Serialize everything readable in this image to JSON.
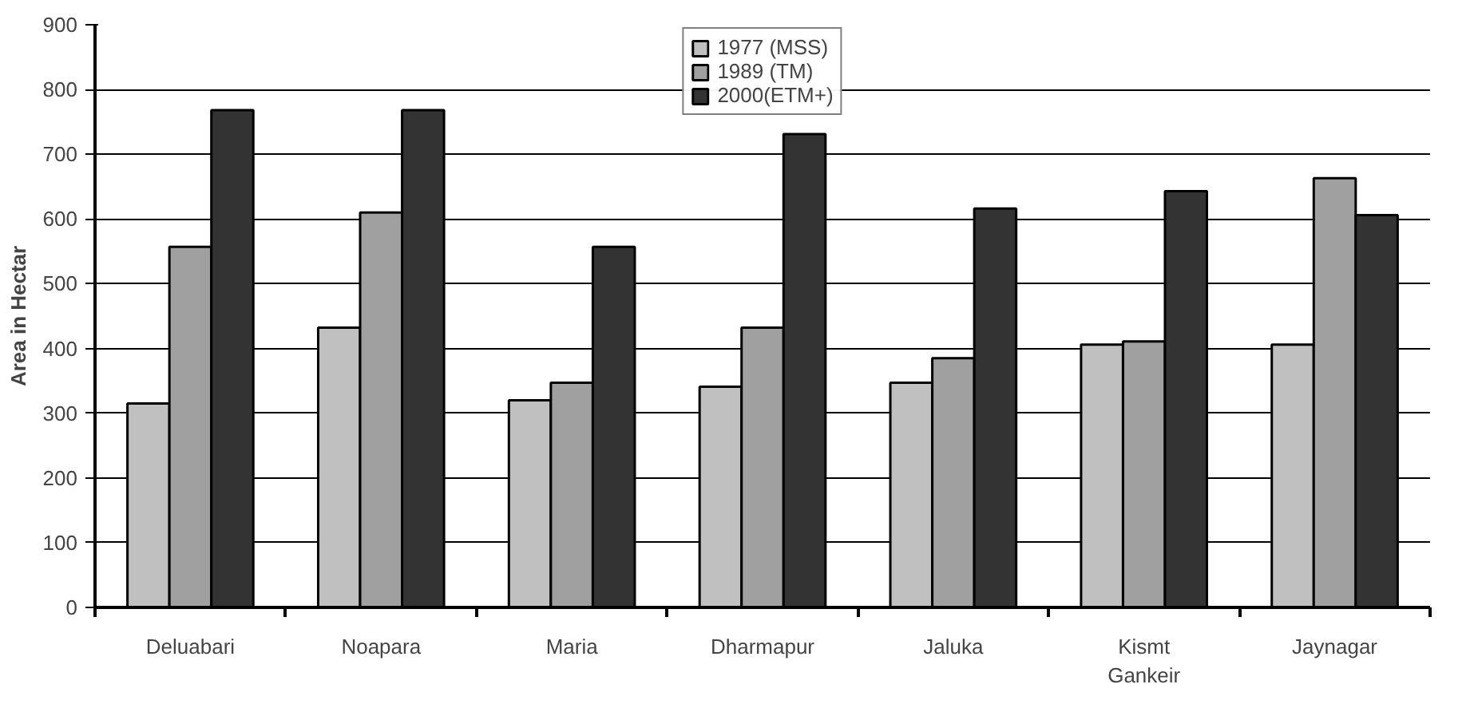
{
  "chart_data": {
    "type": "bar",
    "ylabel": "Area in Hectar",
    "categories": [
      "Deluabari",
      "Noapara",
      "Maria",
      "Dharmapur",
      "Jaluka",
      "Kismt Gankeir",
      "Jaynagar"
    ],
    "series": [
      {
        "name": "1977 (MSS)",
        "color": "#c0c0c0",
        "values": [
          315,
          432,
          320,
          341,
          347,
          406,
          406
        ]
      },
      {
        "name": "1989 (TM)",
        "color": "#a0a0a0",
        "values": [
          557,
          610,
          347,
          432,
          385,
          411,
          663
        ]
      },
      {
        "name": "2000(ETM+)",
        "color": "#333333",
        "values": [
          768,
          768,
          557,
          731,
          616,
          643,
          606
        ]
      }
    ],
    "ylim": [
      0,
      900
    ],
    "yticks": [
      0,
      100,
      200,
      300,
      400,
      500,
      600,
      700,
      800,
      900
    ],
    "grid": "y",
    "legend": "top"
  }
}
